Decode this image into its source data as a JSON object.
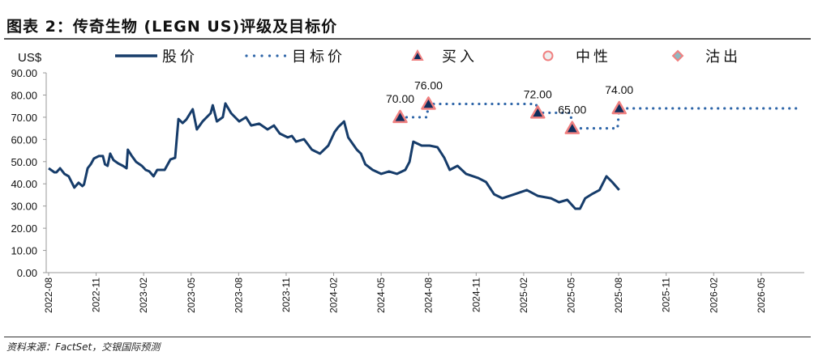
{
  "title": "图表 2：传奇生物 (LEGN US)评级及目标价",
  "source": "资料来源：FactSet，交银国际预测",
  "colors": {
    "price": "#163c6a",
    "target": "#2e65a8",
    "buy_fill": "#0f2d5c",
    "buy_edge": "#f08080",
    "neutral_edge": "#f08080",
    "sell_fill": "#8fb8c0"
  },
  "chart_data": {
    "type": "line",
    "ylabel": "US$",
    "ylim": [
      0,
      90
    ],
    "yticks": [
      "0.00",
      "10.00",
      "20.00",
      "30.00",
      "40.00",
      "50.00",
      "60.00",
      "70.00",
      "80.00",
      "90.00"
    ],
    "xticks": [
      "2022-08",
      "2022-11",
      "2023-02",
      "2023-05",
      "2023-08",
      "2023-11",
      "2024-02",
      "2024-05",
      "2024-08",
      "2024-11",
      "2025-02",
      "2025-05",
      "2025-08",
      "2025-11",
      "2026-02",
      "2026-05"
    ],
    "grid": false,
    "legend": {
      "position": "top",
      "items": [
        {
          "name": "股价",
          "icon": "solid-line"
        },
        {
          "name": "目标价",
          "icon": "dotted-line"
        },
        {
          "name": "买入",
          "icon": "triangle"
        },
        {
          "name": "中性",
          "icon": "circle"
        },
        {
          "name": "沽出",
          "icon": "diamond"
        }
      ]
    },
    "price": {
      "name": "股价",
      "points": [
        [
          "2022-08-01",
          47.0
        ],
        [
          "2022-08-12",
          45.2
        ],
        [
          "2022-08-16",
          45.2
        ],
        [
          "2022-08-23",
          47.0
        ],
        [
          "2022-09-01",
          44.5
        ],
        [
          "2022-09-09",
          43.4
        ],
        [
          "2022-09-17",
          39.7
        ],
        [
          "2022-09-20",
          38.3
        ],
        [
          "2022-09-28",
          40.5
        ],
        [
          "2022-10-05",
          39.0
        ],
        [
          "2022-10-08",
          39.7
        ],
        [
          "2022-10-15",
          47.0
        ],
        [
          "2022-10-21",
          48.8
        ],
        [
          "2022-10-27",
          51.4
        ],
        [
          "2022-11-06",
          52.5
        ],
        [
          "2022-11-14",
          52.5
        ],
        [
          "2022-11-18",
          48.8
        ],
        [
          "2022-11-23",
          48.1
        ],
        [
          "2022-11-28",
          53.6
        ],
        [
          "2022-12-04",
          50.7
        ],
        [
          "2022-12-13",
          49.2
        ],
        [
          "2022-12-22",
          48.1
        ],
        [
          "2022-12-29",
          47.0
        ],
        [
          "2023-01-01",
          55.4
        ],
        [
          "2023-01-08",
          52.8
        ],
        [
          "2023-01-17",
          49.9
        ],
        [
          "2023-01-28",
          48.1
        ],
        [
          "2023-02-05",
          46.3
        ],
        [
          "2023-02-12",
          45.6
        ],
        [
          "2023-02-20",
          43.4
        ],
        [
          "2023-02-27",
          46.3
        ],
        [
          "2023-03-11",
          46.3
        ],
        [
          "2023-03-22",
          51.0
        ],
        [
          "2023-03-31",
          51.7
        ],
        [
          "2023-04-07",
          69.2
        ],
        [
          "2023-04-15",
          67.4
        ],
        [
          "2023-04-22",
          68.9
        ],
        [
          "2023-05-04",
          73.6
        ],
        [
          "2023-05-12",
          64.5
        ],
        [
          "2023-05-23",
          68.1
        ],
        [
          "2023-06-08",
          71.8
        ],
        [
          "2023-06-12",
          75.4
        ],
        [
          "2023-06-20",
          68.1
        ],
        [
          "2023-07-01",
          70.0
        ],
        [
          "2023-07-06",
          76.2
        ],
        [
          "2023-07-17",
          71.8
        ],
        [
          "2023-08-02",
          68.1
        ],
        [
          "2023-08-15",
          70.0
        ],
        [
          "2023-08-25",
          66.3
        ],
        [
          "2023-09-10",
          67.1
        ],
        [
          "2023-09-26",
          64.5
        ],
        [
          "2023-10-08",
          66.3
        ],
        [
          "2023-10-19",
          62.7
        ],
        [
          "2023-11-04",
          60.9
        ],
        [
          "2023-11-12",
          61.6
        ],
        [
          "2023-11-20",
          59.0
        ],
        [
          "2023-12-05",
          60.1
        ],
        [
          "2023-12-20",
          55.4
        ],
        [
          "2024-01-05",
          53.6
        ],
        [
          "2024-01-21",
          57.2
        ],
        [
          "2024-02-03",
          63.4
        ],
        [
          "2024-02-10",
          65.6
        ],
        [
          "2024-02-21",
          68.1
        ],
        [
          "2024-02-29",
          60.9
        ],
        [
          "2024-03-15",
          55.4
        ],
        [
          "2024-03-23",
          53.6
        ],
        [
          "2024-04-01",
          48.8
        ],
        [
          "2024-04-15",
          46.3
        ],
        [
          "2024-05-01",
          44.5
        ],
        [
          "2024-05-16",
          45.6
        ],
        [
          "2024-06-01",
          44.5
        ],
        [
          "2024-06-17",
          46.3
        ],
        [
          "2024-06-25",
          49.9
        ],
        [
          "2024-07-02",
          59.0
        ],
        [
          "2024-07-18",
          57.2
        ],
        [
          "2024-08-03",
          57.2
        ],
        [
          "2024-08-18",
          56.5
        ],
        [
          "2024-08-31",
          51.7
        ],
        [
          "2024-09-11",
          46.3
        ],
        [
          "2024-09-26",
          48.1
        ],
        [
          "2024-10-12",
          44.5
        ],
        [
          "2024-11-05",
          42.6
        ],
        [
          "2024-11-20",
          40.8
        ],
        [
          "2024-12-05",
          35.3
        ],
        [
          "2024-12-21",
          33.5
        ],
        [
          "2025-01-14",
          35.3
        ],
        [
          "2025-02-07",
          37.2
        ],
        [
          "2025-02-28",
          34.6
        ],
        [
          "2025-03-23",
          33.5
        ],
        [
          "2025-04-08",
          31.7
        ],
        [
          "2025-04-24",
          32.8
        ],
        [
          "2025-05-09",
          28.8
        ],
        [
          "2025-05-18",
          28.8
        ],
        [
          "2025-05-28",
          33.5
        ],
        [
          "2025-06-10",
          35.3
        ],
        [
          "2025-06-25",
          37.2
        ],
        [
          "2025-07-08",
          43.4
        ],
        [
          "2025-07-19",
          40.8
        ],
        [
          "2025-08-02",
          37.2
        ]
      ]
    },
    "target": {
      "name": "目标价",
      "points": [
        [
          "2024-06-07",
          70
        ],
        [
          "2024-07-31",
          76
        ],
        [
          "2025-02-28",
          72
        ],
        [
          "2025-05-03",
          65
        ],
        [
          "2025-08-02",
          74
        ],
        [
          "2026-07-16",
          74
        ]
      ]
    },
    "ratings": [
      {
        "date": "2024-06-07",
        "rating": "买入",
        "target": 70,
        "label": "70.00"
      },
      {
        "date": "2024-07-31",
        "rating": "买入",
        "target": 76,
        "label": "76.00"
      },
      {
        "date": "2025-02-28",
        "rating": "买入",
        "target": 72,
        "label": "72.00"
      },
      {
        "date": "2025-05-03",
        "rating": "买入",
        "target": 65,
        "label": "65.00"
      },
      {
        "date": "2025-08-02",
        "rating": "买入",
        "target": 74,
        "label": "74.00"
      }
    ]
  }
}
